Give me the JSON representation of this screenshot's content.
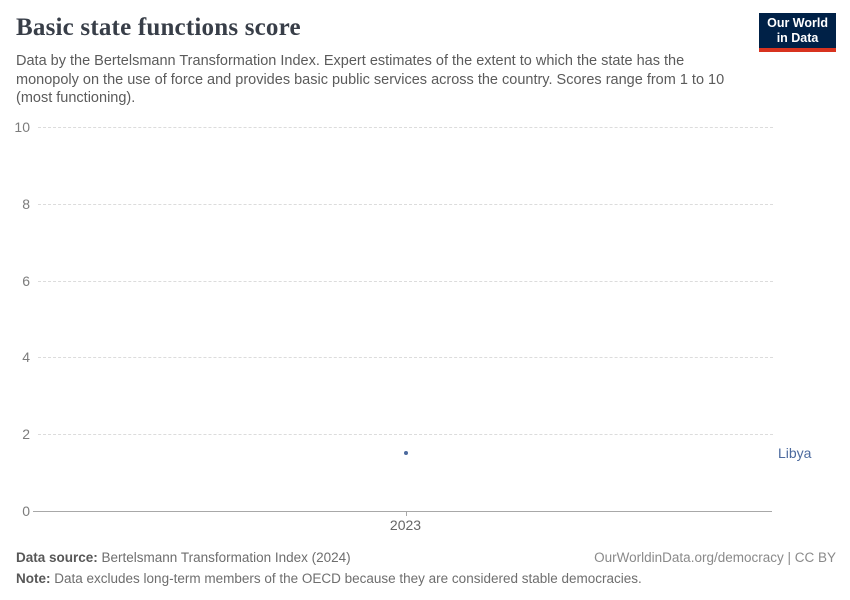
{
  "header": {
    "title": "Basic state functions score",
    "subtitle": "Data by the Bertelsmann Transformation Index. Expert estimates of the extent to which the state has the monopoly on the use of force and provides basic public services across the country. Scores range from 1 to 10 (most functioning).",
    "logo": {
      "line1": "Our World",
      "line2": "in Data",
      "background_color": "#002147",
      "accent_color": "#d8331f"
    }
  },
  "chart_data": {
    "type": "scatter",
    "title": "Basic state functions score",
    "x": [
      2023
    ],
    "xticks": [
      "2023"
    ],
    "series": [
      {
        "name": "Libya",
        "values": [
          1.5
        ]
      }
    ],
    "ylim": [
      0,
      10
    ],
    "yticks": [
      0,
      2,
      4,
      6,
      8,
      10
    ],
    "grid": "horizontal-dashed",
    "legend_position": "right-of-point",
    "point_color": "#4c6a9e",
    "entity_label_color": "#4c6a9e",
    "gridline_color": "#dcdcdc",
    "axis_color": "#a8a8a8"
  },
  "footer": {
    "source_label": "Data source:",
    "source_text": " Bertelsmann Transformation Index (2024)",
    "attribution": "OurWorldinData.org/democracy | CC BY",
    "note_label": "Note:",
    "note_text": " Data excludes long-term members of the OECD because they are considered stable democracies."
  }
}
